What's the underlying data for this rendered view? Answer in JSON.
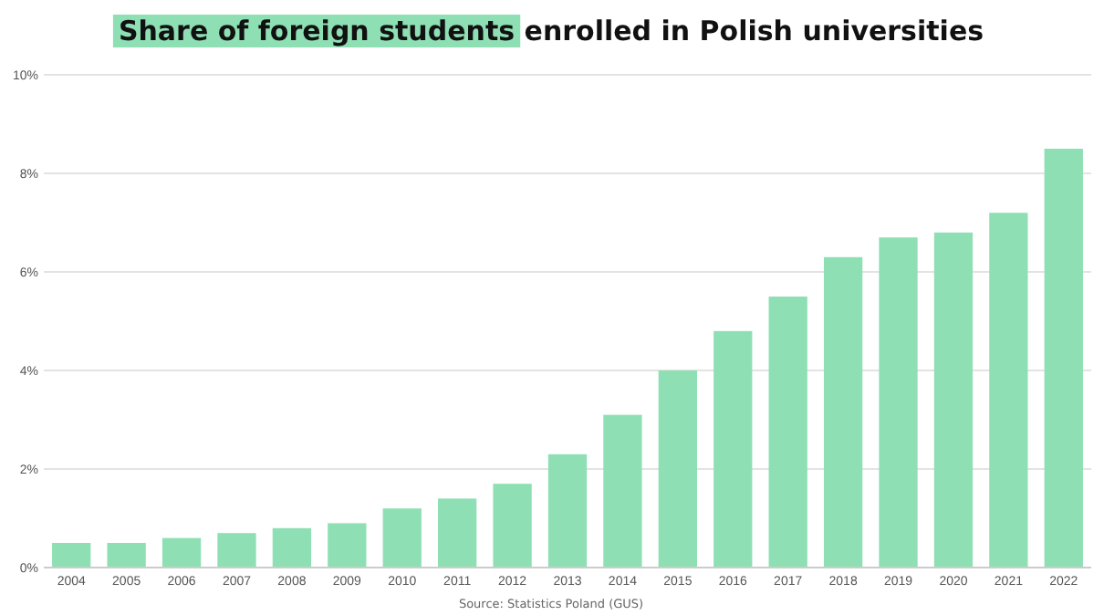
{
  "chart_data": {
    "type": "bar",
    "title": "Share of foreign students enrolled in Polish universities",
    "categories": [
      "2004",
      "2005",
      "2006",
      "2007",
      "2008",
      "2009",
      "2010",
      "2011",
      "2012",
      "2013",
      "2014",
      "2015",
      "2016",
      "2017",
      "2018",
      "2019",
      "2020",
      "2021",
      "2022"
    ],
    "values": [
      0.5,
      0.5,
      0.6,
      0.7,
      0.8,
      0.9,
      1.2,
      1.4,
      1.7,
      2.3,
      3.1,
      4.0,
      4.8,
      5.5,
      6.3,
      6.7,
      6.8,
      7.2,
      8.5
    ],
    "color": "#8ee0b4",
    "ylim": [
      0,
      10
    ],
    "yticks": [
      {
        "value": 0,
        "label": "0%"
      },
      {
        "value": 2,
        "label": "2%"
      },
      {
        "value": 4,
        "label": "4%"
      },
      {
        "value": 6,
        "label": "6%"
      },
      {
        "value": 8,
        "label": "8%"
      },
      {
        "value": 10,
        "label": "10%"
      }
    ],
    "grid": "y",
    "annotations": [
      "Source: Statistics Poland (GUS)"
    ]
  }
}
